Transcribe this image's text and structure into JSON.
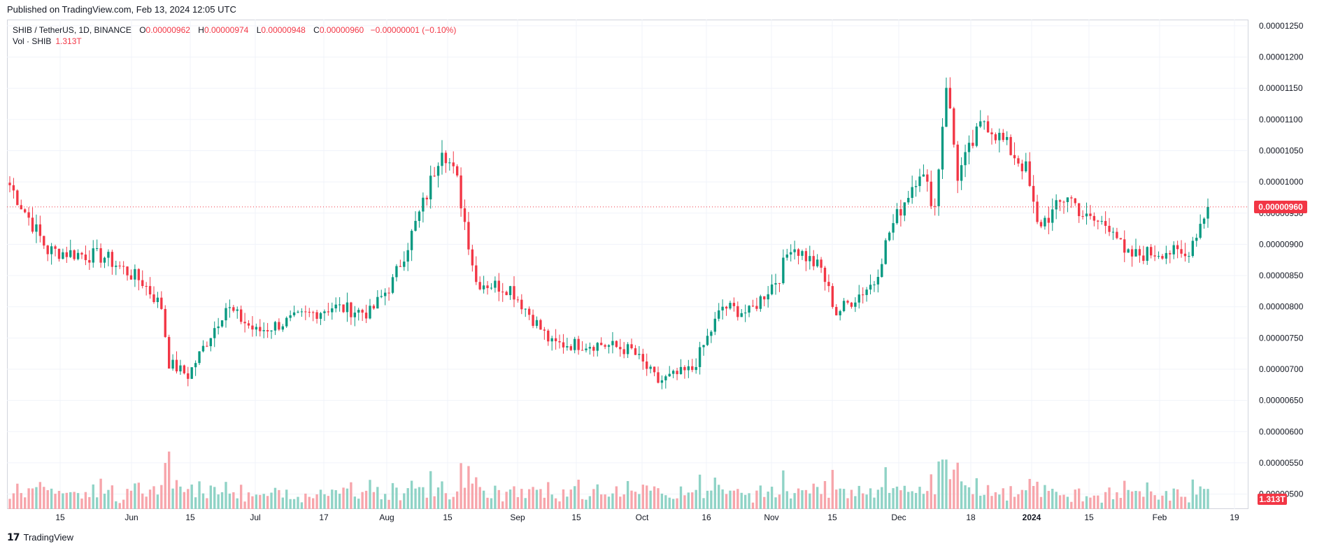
{
  "header": {
    "published": "Published on TradingView.com, Feb 13, 2024 12:05 UTC"
  },
  "legend": {
    "symbol": "SHIB / TetherUS, 1D, BINANCE",
    "o_label": "O",
    "o_value": "0.00000962",
    "h_label": "H",
    "h_value": "0.00000974",
    "l_label": "L",
    "l_value": "0.00000948",
    "c_label": "C",
    "c_value": "0.00000960",
    "change": "−0.00000001 (−0.10%)",
    "vol_label": "Vol · SHIB",
    "vol_value": "1.313T"
  },
  "price_tag": "0.00000960",
  "vol_tag": "1.313T",
  "logo_text": "TradingView",
  "colors": {
    "up": "#089981",
    "down": "#f23645",
    "vol_up": "#8fd3c6",
    "vol_down": "#f7a5ab",
    "grid": "#f0f3fa"
  },
  "chart_data": {
    "type": "candlestick",
    "y_axis": {
      "min": 4.76e-06,
      "max": 1.26e-05,
      "ticks": [
        "0.00001250",
        "0.00001200",
        "0.00001150",
        "0.00001100",
        "0.00001050",
        "0.00001000",
        "0.00000950",
        "0.00000900",
        "0.00000850",
        "0.00000800",
        "0.00000750",
        "0.00000700",
        "0.00000650",
        "0.00000600",
        "0.00000550",
        "0.00000500"
      ]
    },
    "x_ticks": [
      "15",
      "Jun",
      "15",
      "Jul",
      "17",
      "Aug",
      "15",
      "Sep",
      "15",
      "Oct",
      "16",
      "Nov",
      "15",
      "Dec",
      "18",
      "2024",
      "15",
      "Feb",
      "19"
    ],
    "last_price": 9.6e-06,
    "anchors": [
      {
        "d": 0,
        "c": 9.95e-06
      },
      {
        "d": 10,
        "c": 8.9e-06
      },
      {
        "d": 25,
        "c": 8.8e-06
      },
      {
        "d": 35,
        "c": 8.4e-06
      },
      {
        "d": 40,
        "c": 8e-06
      },
      {
        "d": 42,
        "c": 7.1e-06
      },
      {
        "d": 47,
        "c": 6.9e-06
      },
      {
        "d": 57,
        "c": 8e-06
      },
      {
        "d": 65,
        "c": 7.6e-06
      },
      {
        "d": 75,
        "c": 7.8e-06
      },
      {
        "d": 85,
        "c": 8e-06
      },
      {
        "d": 95,
        "c": 7.9e-06
      },
      {
        "d": 101,
        "c": 8.4e-06
      },
      {
        "d": 105,
        "c": 9e-06
      },
      {
        "d": 110,
        "c": 9.8e-06
      },
      {
        "d": 114,
        "c": 1.06e-05
      },
      {
        "d": 118,
        "c": 1e-05
      },
      {
        "d": 123,
        "c": 8.4e-06
      },
      {
        "d": 132,
        "c": 8.3e-06
      },
      {
        "d": 143,
        "c": 7.4e-06
      },
      {
        "d": 156,
        "c": 7.4e-06
      },
      {
        "d": 164,
        "c": 7.3e-06
      },
      {
        "d": 171,
        "c": 6.8e-06
      },
      {
        "d": 180,
        "c": 7e-06
      },
      {
        "d": 188,
        "c": 8e-06
      },
      {
        "d": 195,
        "c": 7.9e-06
      },
      {
        "d": 203,
        "c": 8.5e-06
      },
      {
        "d": 206,
        "c": 9e-06
      },
      {
        "d": 214,
        "c": 8.6e-06
      },
      {
        "d": 218,
        "c": 7.9e-06
      },
      {
        "d": 228,
        "c": 8.4e-06
      },
      {
        "d": 232,
        "c": 9.2e-06
      },
      {
        "d": 236,
        "c": 9.7e-06
      },
      {
        "d": 240,
        "c": 1.02e-05
      },
      {
        "d": 244,
        "c": 9.6e-06
      },
      {
        "d": 247,
        "c": 1.16e-05
      },
      {
        "d": 250,
        "c": 1.01e-05
      },
      {
        "d": 257,
        "c": 1.1e-05
      },
      {
        "d": 264,
        "c": 1.05e-05
      },
      {
        "d": 268,
        "c": 1.02e-05
      },
      {
        "d": 271,
        "c": 9.3e-06
      },
      {
        "d": 275,
        "c": 9.5e-06
      },
      {
        "d": 279,
        "c": 9.8e-06
      },
      {
        "d": 284,
        "c": 9.4e-06
      },
      {
        "d": 291,
        "c": 9.3e-06
      },
      {
        "d": 294,
        "c": 8.8e-06
      },
      {
        "d": 305,
        "c": 8.9e-06
      },
      {
        "d": 310,
        "c": 8.8e-06
      },
      {
        "d": 316,
        "c": 9.6e-06
      }
    ]
  }
}
